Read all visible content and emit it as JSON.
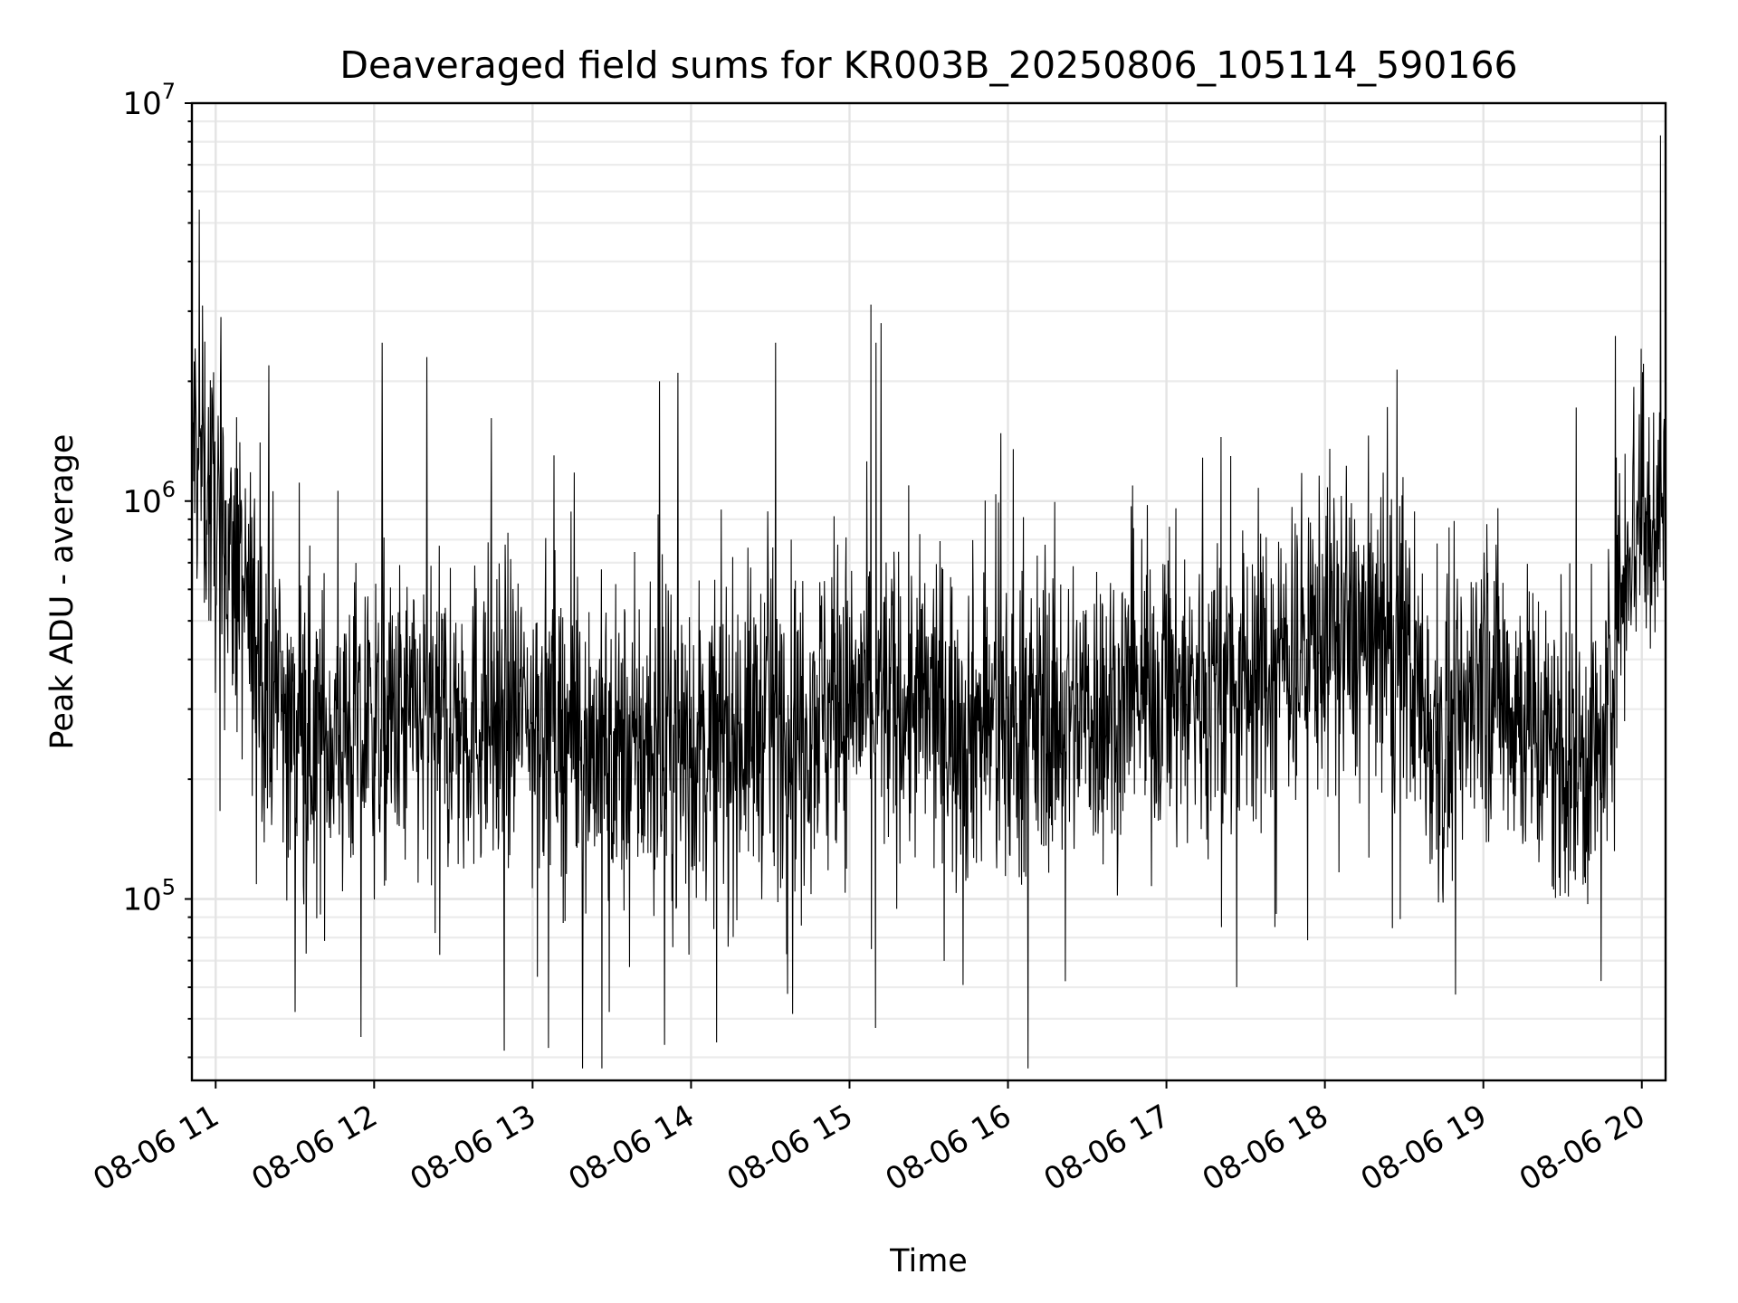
{
  "chart_data": {
    "type": "line",
    "title": "Deaveraged field sums for KR003B_20250806_105114_590166",
    "xlabel": "Time",
    "ylabel": "Peak ADU - average",
    "y_scale": "log",
    "ylim": [
      35000,
      10000000
    ],
    "xlim": [
      "2025-08-06 10:51",
      "2025-08-06 20:09"
    ],
    "grid": true,
    "x_ticks": [
      "08-06 11",
      "08-06 12",
      "08-06 13",
      "08-06 14",
      "08-06 15",
      "08-06 16",
      "08-06 17",
      "08-06 18",
      "08-06 19",
      "08-06 20"
    ],
    "y_ticks": [
      {
        "value": 100000,
        "base": "10",
        "exp": "5"
      },
      {
        "value": 1000000,
        "base": "10",
        "exp": "6"
      },
      {
        "value": 10000000,
        "base": "10",
        "exp": "7"
      }
    ],
    "series": [
      {
        "color": "#000000",
        "trend": {
          "x": [
            "2025-08-06 10:51",
            "2025-08-06 11:00",
            "2025-08-06 11:15",
            "2025-08-06 11:30",
            "2025-08-06 12:00",
            "2025-08-06 12:30",
            "2025-08-06 13:00",
            "2025-08-06 13:30",
            "2025-08-06 14:00",
            "2025-08-06 14:30",
            "2025-08-06 15:00",
            "2025-08-06 15:30",
            "2025-08-06 16:00",
            "2025-08-06 16:30",
            "2025-08-06 17:00",
            "2025-08-06 17:30",
            "2025-08-06 18:00",
            "2025-08-06 18:30",
            "2025-08-06 18:45",
            "2025-08-06 19:00",
            "2025-08-06 19:30",
            "2025-08-06 19:45",
            "2025-08-06 19:55",
            "2025-08-06 20:09"
          ],
          "y": [
            1500000,
            900000,
            450000,
            250000,
            270000,
            280000,
            300000,
            230000,
            240000,
            280000,
            320000,
            300000,
            270000,
            300000,
            330000,
            350000,
            480000,
            420000,
            230000,
            380000,
            220000,
            230000,
            850000,
            1050000
          ]
        },
        "spikes": [
          {
            "x": "2025-08-06 10:55",
            "y": 3100000
          },
          {
            "x": "2025-08-06 11:02",
            "y": 2900000
          },
          {
            "x": "2025-08-06 11:30",
            "y": 52000
          },
          {
            "x": "2025-08-06 11:55",
            "y": 45000
          },
          {
            "x": "2025-08-06 12:03",
            "y": 2500000
          },
          {
            "x": "2025-08-06 12:20",
            "y": 2300000
          },
          {
            "x": "2025-08-06 13:29",
            "y": 52000
          },
          {
            "x": "2025-08-06 13:48",
            "y": 2000000
          },
          {
            "x": "2025-08-06 13:50",
            "y": 43000
          },
          {
            "x": "2025-08-06 13:55",
            "y": 2100000
          },
          {
            "x": "2025-08-06 14:32",
            "y": 2500000
          },
          {
            "x": "2025-08-06 15:10",
            "y": 2500000
          },
          {
            "x": "2025-08-06 15:12",
            "y": 2800000
          },
          {
            "x": "2025-08-06 17:41",
            "y": 85000
          },
          {
            "x": "2025-08-06 19:50",
            "y": 2600000
          },
          {
            "x": "2025-08-06 20:07",
            "y": 8300000
          },
          {
            "x": "2025-08-06 20:09",
            "y": 1800000
          }
        ]
      }
    ]
  }
}
